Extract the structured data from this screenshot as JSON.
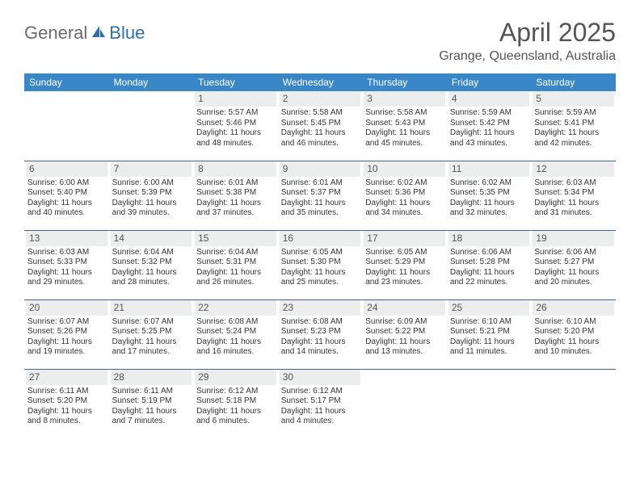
{
  "brand": {
    "general": "General",
    "blue": "Blue"
  },
  "title": "April 2025",
  "location": "Grange, Queensland, Australia",
  "colors": {
    "header_bg": "#3a87c7",
    "header_text": "#ffffff",
    "daynum_bg": "#eceded",
    "rule": "#3a6a96",
    "logo_gray": "#6b6b6b",
    "logo_blue": "#2f6fa8"
  },
  "weekdays": [
    "Sunday",
    "Monday",
    "Tuesday",
    "Wednesday",
    "Thursday",
    "Friday",
    "Saturday"
  ],
  "weeks": [
    [
      {
        "blank": true
      },
      {
        "blank": true
      },
      {
        "n": "1",
        "sr": "5:57 AM",
        "ss": "5:46 PM",
        "dl": "11 hours and 48 minutes."
      },
      {
        "n": "2",
        "sr": "5:58 AM",
        "ss": "5:45 PM",
        "dl": "11 hours and 46 minutes."
      },
      {
        "n": "3",
        "sr": "5:58 AM",
        "ss": "5:43 PM",
        "dl": "11 hours and 45 minutes."
      },
      {
        "n": "4",
        "sr": "5:59 AM",
        "ss": "5:42 PM",
        "dl": "11 hours and 43 minutes."
      },
      {
        "n": "5",
        "sr": "5:59 AM",
        "ss": "5:41 PM",
        "dl": "11 hours and 42 minutes."
      }
    ],
    [
      {
        "n": "6",
        "sr": "6:00 AM",
        "ss": "5:40 PM",
        "dl": "11 hours and 40 minutes."
      },
      {
        "n": "7",
        "sr": "6:00 AM",
        "ss": "5:39 PM",
        "dl": "11 hours and 39 minutes."
      },
      {
        "n": "8",
        "sr": "6:01 AM",
        "ss": "5:38 PM",
        "dl": "11 hours and 37 minutes."
      },
      {
        "n": "9",
        "sr": "6:01 AM",
        "ss": "5:37 PM",
        "dl": "11 hours and 35 minutes."
      },
      {
        "n": "10",
        "sr": "6:02 AM",
        "ss": "5:36 PM",
        "dl": "11 hours and 34 minutes."
      },
      {
        "n": "11",
        "sr": "6:02 AM",
        "ss": "5:35 PM",
        "dl": "11 hours and 32 minutes."
      },
      {
        "n": "12",
        "sr": "6:03 AM",
        "ss": "5:34 PM",
        "dl": "11 hours and 31 minutes."
      }
    ],
    [
      {
        "n": "13",
        "sr": "6:03 AM",
        "ss": "5:33 PM",
        "dl": "11 hours and 29 minutes."
      },
      {
        "n": "14",
        "sr": "6:04 AM",
        "ss": "5:32 PM",
        "dl": "11 hours and 28 minutes."
      },
      {
        "n": "15",
        "sr": "6:04 AM",
        "ss": "5:31 PM",
        "dl": "11 hours and 26 minutes."
      },
      {
        "n": "16",
        "sr": "6:05 AM",
        "ss": "5:30 PM",
        "dl": "11 hours and 25 minutes."
      },
      {
        "n": "17",
        "sr": "6:05 AM",
        "ss": "5:29 PM",
        "dl": "11 hours and 23 minutes."
      },
      {
        "n": "18",
        "sr": "6:06 AM",
        "ss": "5:28 PM",
        "dl": "11 hours and 22 minutes."
      },
      {
        "n": "19",
        "sr": "6:06 AM",
        "ss": "5:27 PM",
        "dl": "11 hours and 20 minutes."
      }
    ],
    [
      {
        "n": "20",
        "sr": "6:07 AM",
        "ss": "5:26 PM",
        "dl": "11 hours and 19 minutes."
      },
      {
        "n": "21",
        "sr": "6:07 AM",
        "ss": "5:25 PM",
        "dl": "11 hours and 17 minutes."
      },
      {
        "n": "22",
        "sr": "6:08 AM",
        "ss": "5:24 PM",
        "dl": "11 hours and 16 minutes."
      },
      {
        "n": "23",
        "sr": "6:08 AM",
        "ss": "5:23 PM",
        "dl": "11 hours and 14 minutes."
      },
      {
        "n": "24",
        "sr": "6:09 AM",
        "ss": "5:22 PM",
        "dl": "11 hours and 13 minutes."
      },
      {
        "n": "25",
        "sr": "6:10 AM",
        "ss": "5:21 PM",
        "dl": "11 hours and 11 minutes."
      },
      {
        "n": "26",
        "sr": "6:10 AM",
        "ss": "5:20 PM",
        "dl": "11 hours and 10 minutes."
      }
    ],
    [
      {
        "n": "27",
        "sr": "6:11 AM",
        "ss": "5:20 PM",
        "dl": "11 hours and 8 minutes."
      },
      {
        "n": "28",
        "sr": "6:11 AM",
        "ss": "5:19 PM",
        "dl": "11 hours and 7 minutes."
      },
      {
        "n": "29",
        "sr": "6:12 AM",
        "ss": "5:18 PM",
        "dl": "11 hours and 6 minutes."
      },
      {
        "n": "30",
        "sr": "6:12 AM",
        "ss": "5:17 PM",
        "dl": "11 hours and 4 minutes."
      },
      {
        "blank": true
      },
      {
        "blank": true
      },
      {
        "blank": true
      }
    ]
  ],
  "labels": {
    "sunrise": "Sunrise:",
    "sunset": "Sunset:",
    "daylight": "Daylight:"
  }
}
